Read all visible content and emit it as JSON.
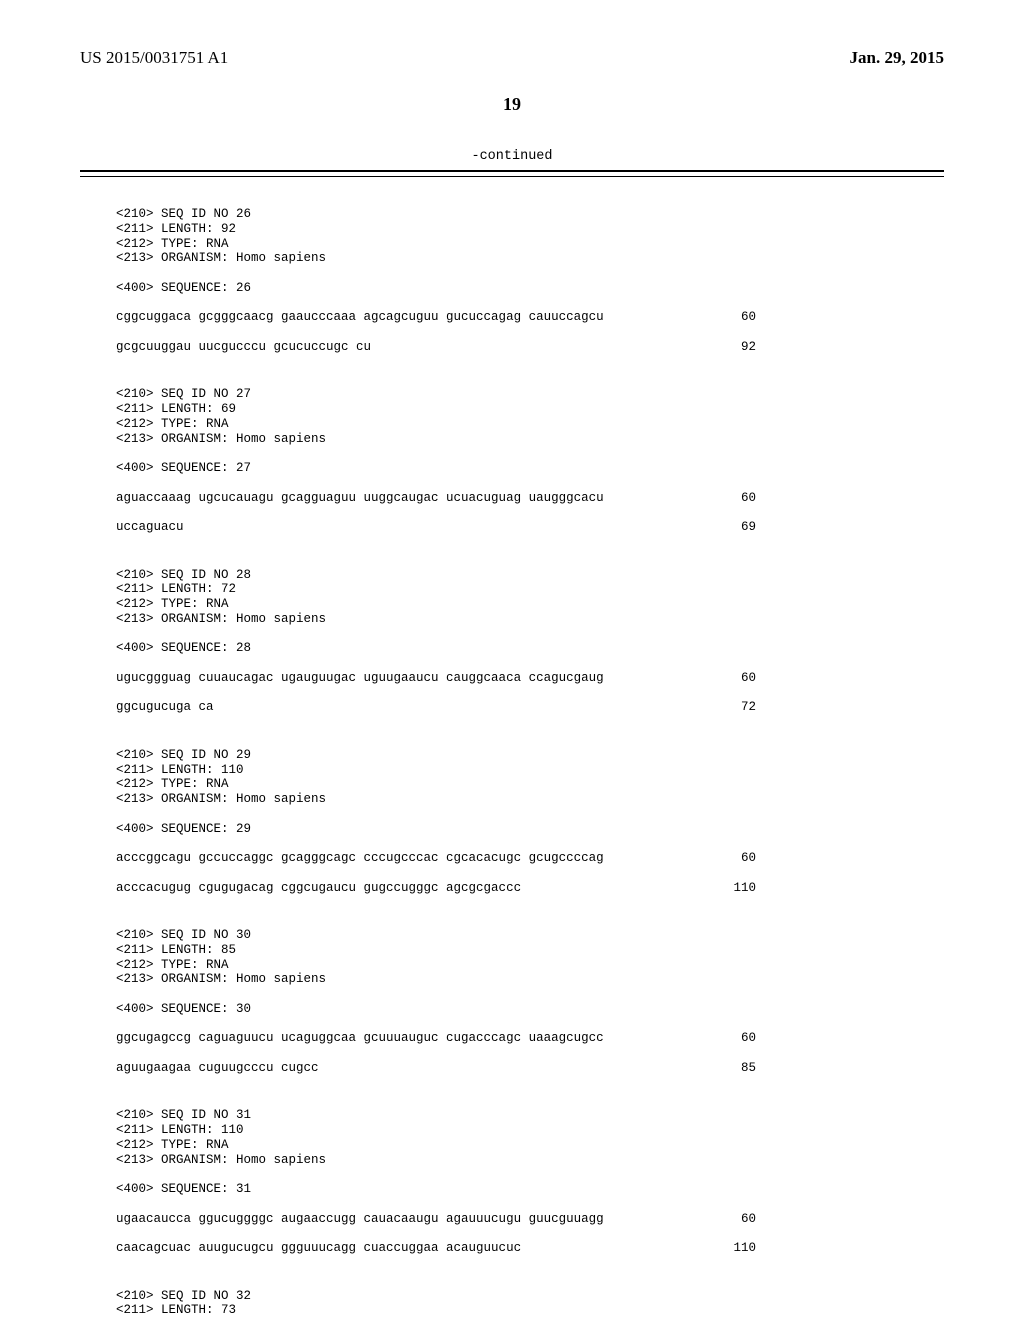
{
  "header": {
    "pub_number": "US 2015/0031751 A1",
    "pub_date": "Jan. 29, 2015"
  },
  "page_number": "19",
  "continued_label": "-continued",
  "entries": [
    {
      "meta": [
        "<210> SEQ ID NO 26",
        "<211> LENGTH: 92",
        "<212> TYPE: RNA",
        "<213> ORGANISM: Homo sapiens"
      ],
      "seq_label": "<400> SEQUENCE: 26",
      "lines": [
        {
          "text": "cggcuggaca gcgggcaacg gaaucccaaa agcagcuguu gucuccagag cauuccagcu",
          "num": "60"
        },
        {
          "text": "gcgcuuggau uucgucccu gcucuccugc cu",
          "num": "92"
        }
      ]
    },
    {
      "meta": [
        "<210> SEQ ID NO 27",
        "<211> LENGTH: 69",
        "<212> TYPE: RNA",
        "<213> ORGANISM: Homo sapiens"
      ],
      "seq_label": "<400> SEQUENCE: 27",
      "lines": [
        {
          "text": "aguaccaaag ugcucauagu gcagguaguu uuggcaugac ucuacuguag uaugggcacu",
          "num": "60"
        },
        {
          "text": "uccaguacu",
          "num": "69"
        }
      ]
    },
    {
      "meta": [
        "<210> SEQ ID NO 28",
        "<211> LENGTH: 72",
        "<212> TYPE: RNA",
        "<213> ORGANISM: Homo sapiens"
      ],
      "seq_label": "<400> SEQUENCE: 28",
      "lines": [
        {
          "text": "ugucggguag cuuaucagac ugauguugac uguugaaucu cauggcaaca ccagucgaug",
          "num": "60"
        },
        {
          "text": "ggcugucuga ca",
          "num": "72"
        }
      ]
    },
    {
      "meta": [
        "<210> SEQ ID NO 29",
        "<211> LENGTH: 110",
        "<212> TYPE: RNA",
        "<213> ORGANISM: Homo sapiens"
      ],
      "seq_label": "<400> SEQUENCE: 29",
      "lines": [
        {
          "text": "acccggcagu gccuccaggc gcagggcagc cccugcccac cgcacacugc gcugccccag",
          "num": "60"
        },
        {
          "text": "acccacugug cgugugacag cggcugaucu gugccugggc agcgcgaccc",
          "num": "110"
        }
      ]
    },
    {
      "meta": [
        "<210> SEQ ID NO 30",
        "<211> LENGTH: 85",
        "<212> TYPE: RNA",
        "<213> ORGANISM: Homo sapiens"
      ],
      "seq_label": "<400> SEQUENCE: 30",
      "lines": [
        {
          "text": "ggcugagccg caguaguucu ucaguggcaa gcuuuauguc cugacccagc uaaagcugcc",
          "num": "60"
        },
        {
          "text": "aguugaagaa cuguugcccu cugcc",
          "num": "85"
        }
      ]
    },
    {
      "meta": [
        "<210> SEQ ID NO 31",
        "<211> LENGTH: 110",
        "<212> TYPE: RNA",
        "<213> ORGANISM: Homo sapiens"
      ],
      "seq_label": "<400> SEQUENCE: 31",
      "lines": [
        {
          "text": "ugaacaucca ggucuggggc augaaccugg cauacaaugu agauuucugu guucguuagg",
          "num": "60"
        },
        {
          "text": "caacagcuac auugucugcu ggguuucagg cuaccuggaa acauguucuc",
          "num": "110"
        }
      ]
    },
    {
      "meta": [
        "<210> SEQ ID NO 32",
        "<211> LENGTH: 73"
      ],
      "seq_label": null,
      "lines": []
    }
  ]
}
